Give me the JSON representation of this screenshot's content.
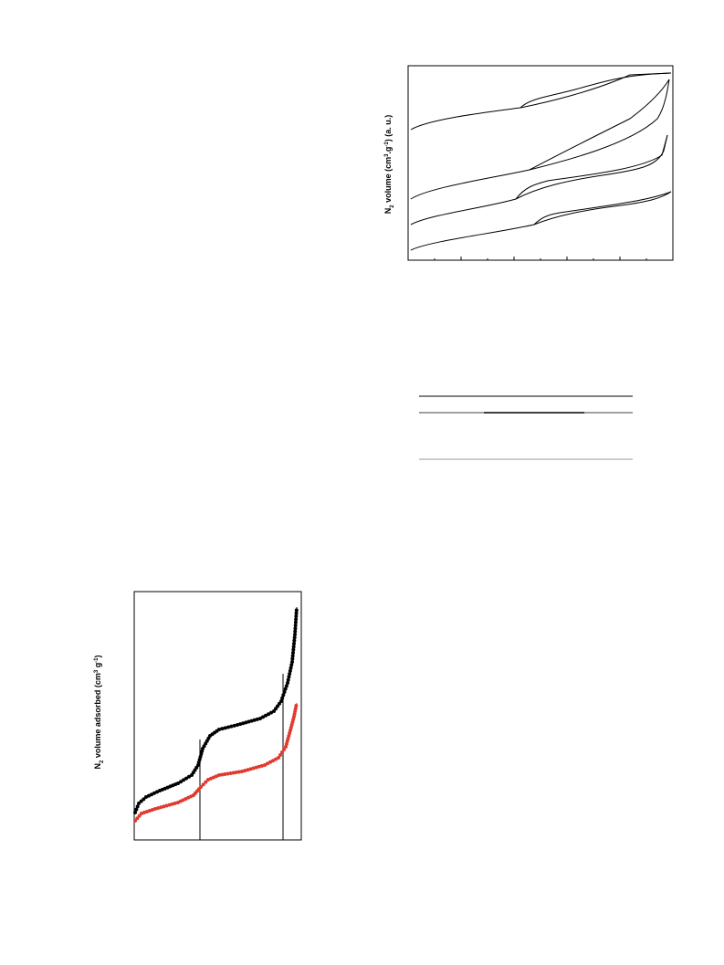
{
  "top_figure": {
    "y_label": [
      "N",
      "2",
      " volume (cm",
      "3",
      ".g",
      "-1",
      ") (a. u.)"
    ]
  },
  "bottom_figure": {
    "y_label": [
      "N",
      "2",
      " volume adsorbed (cm",
      "3",
      " g",
      "-1",
      ")"
    ]
  }
}
